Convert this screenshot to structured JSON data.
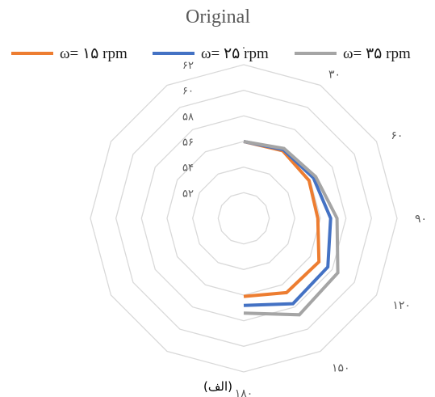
{
  "chart_data": {
    "type": "radar",
    "title": "Original",
    "caption": "(الف)",
    "categories": [
      "۰",
      "۳۰",
      "۶۰",
      "۹۰",
      "۱۲۰",
      "۱۵۰",
      "۱۸۰"
    ],
    "angles_deg": [
      0,
      30,
      60,
      90,
      120,
      150,
      180
    ],
    "radial_ticks": [
      52,
      54,
      56,
      58,
      60,
      62
    ],
    "radial_tick_labels": [
      "۵۲",
      "۵۴",
      "۵۶",
      "۵۸",
      "۶۰",
      "۶۲"
    ],
    "rlim": [
      50,
      62
    ],
    "grid": true,
    "legend_position": "top",
    "series": [
      {
        "name": "ω= ۱۵ rpm",
        "color": "#ED7D31",
        "values": [
          56.0,
          56.1,
          55.9,
          55.8,
          56.8,
          56.7,
          56.1
        ]
      },
      {
        "name": "ω= ۲۵ rpm",
        "color": "#4472C4",
        "values": [
          56.0,
          56.2,
          56.3,
          56.8,
          57.6,
          57.7,
          56.8
        ]
      },
      {
        "name": "ω= ۳۵ rpm",
        "color": "#A5A5A5",
        "values": [
          56.0,
          56.3,
          56.5,
          57.3,
          58.5,
          58.7,
          57.4
        ]
      }
    ]
  }
}
